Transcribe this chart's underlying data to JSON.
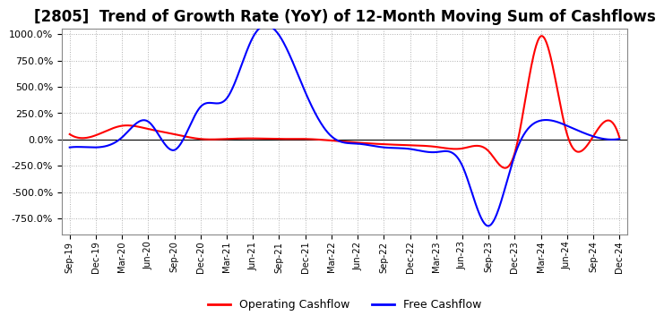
{
  "title": "[2805]  Trend of Growth Rate (YoY) of 12-Month Moving Sum of Cashflows",
  "title_fontsize": 12,
  "background_color": "#ffffff",
  "plot_bg_color": "#ffffff",
  "grid_color": "#b0b0b0",
  "operating_color": "#ff0000",
  "free_color": "#0000ff",
  "ylim": [
    -900,
    1050
  ],
  "yticks": [
    -750,
    -500,
    -250,
    0,
    250,
    500,
    750,
    1000
  ],
  "x_labels": [
    "Sep-19",
    "Dec-19",
    "Mar-20",
    "Jun-20",
    "Sep-20",
    "Dec-20",
    "Mar-21",
    "Jun-21",
    "Sep-21",
    "Dec-21",
    "Mar-22",
    "Jun-22",
    "Sep-22",
    "Dec-22",
    "Mar-23",
    "Jun-23",
    "Sep-23",
    "Dec-23",
    "Mar-24",
    "Jun-24",
    "Sep-24",
    "Dec-24"
  ],
  "operating_cashflow": [
    50,
    40,
    130,
    100,
    50,
    5,
    5,
    10,
    5,
    5,
    -10,
    -30,
    -45,
    -55,
    -70,
    -85,
    -110,
    -130,
    980,
    50,
    30,
    20
  ],
  "free_cashflow": [
    -75,
    -75,
    20,
    170,
    -100,
    310,
    390,
    970,
    990,
    450,
    30,
    -40,
    -75,
    -90,
    -120,
    -250,
    -820,
    -150,
    180,
    130,
    30,
    5
  ]
}
